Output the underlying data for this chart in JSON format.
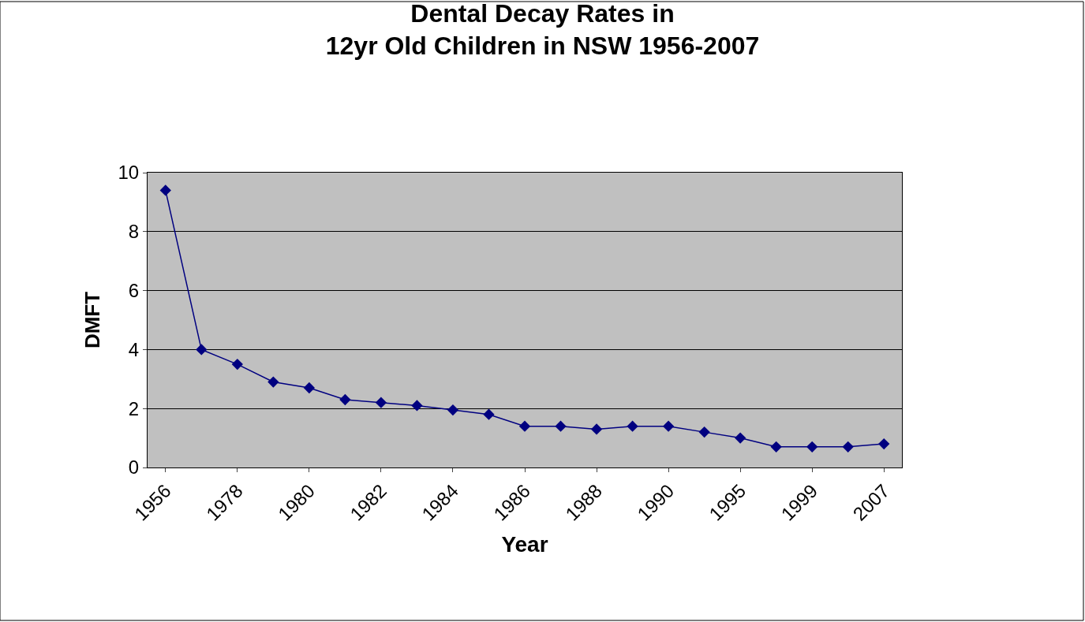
{
  "chart_data": {
    "type": "line",
    "title": "Dental Decay Rates in\n12yr Old Children in NSW 1956-2007",
    "xlabel": "Year",
    "ylabel": "DMFT",
    "categories": [
      "1956",
      null,
      "1978",
      null,
      "1980",
      null,
      "1982",
      null,
      "1984",
      null,
      "1986",
      null,
      "1988",
      null,
      "1990",
      null,
      "1995",
      null,
      "1999",
      null,
      "2007"
    ],
    "series": [
      {
        "color": "#000080",
        "values": [
          9.4,
          4.0,
          3.5,
          2.9,
          2.7,
          2.3,
          2.2,
          2.1,
          1.95,
          1.8,
          1.4,
          1.4,
          1.3,
          1.4,
          1.4,
          1.2,
          1.0,
          0.7,
          0.7,
          0.7,
          0.8
        ]
      }
    ],
    "ylim": [
      0,
      10
    ],
    "yticks": [
      0,
      2,
      4,
      6,
      8,
      10
    ],
    "grid": "y",
    "marker": "diamond",
    "line_style": "solid"
  }
}
